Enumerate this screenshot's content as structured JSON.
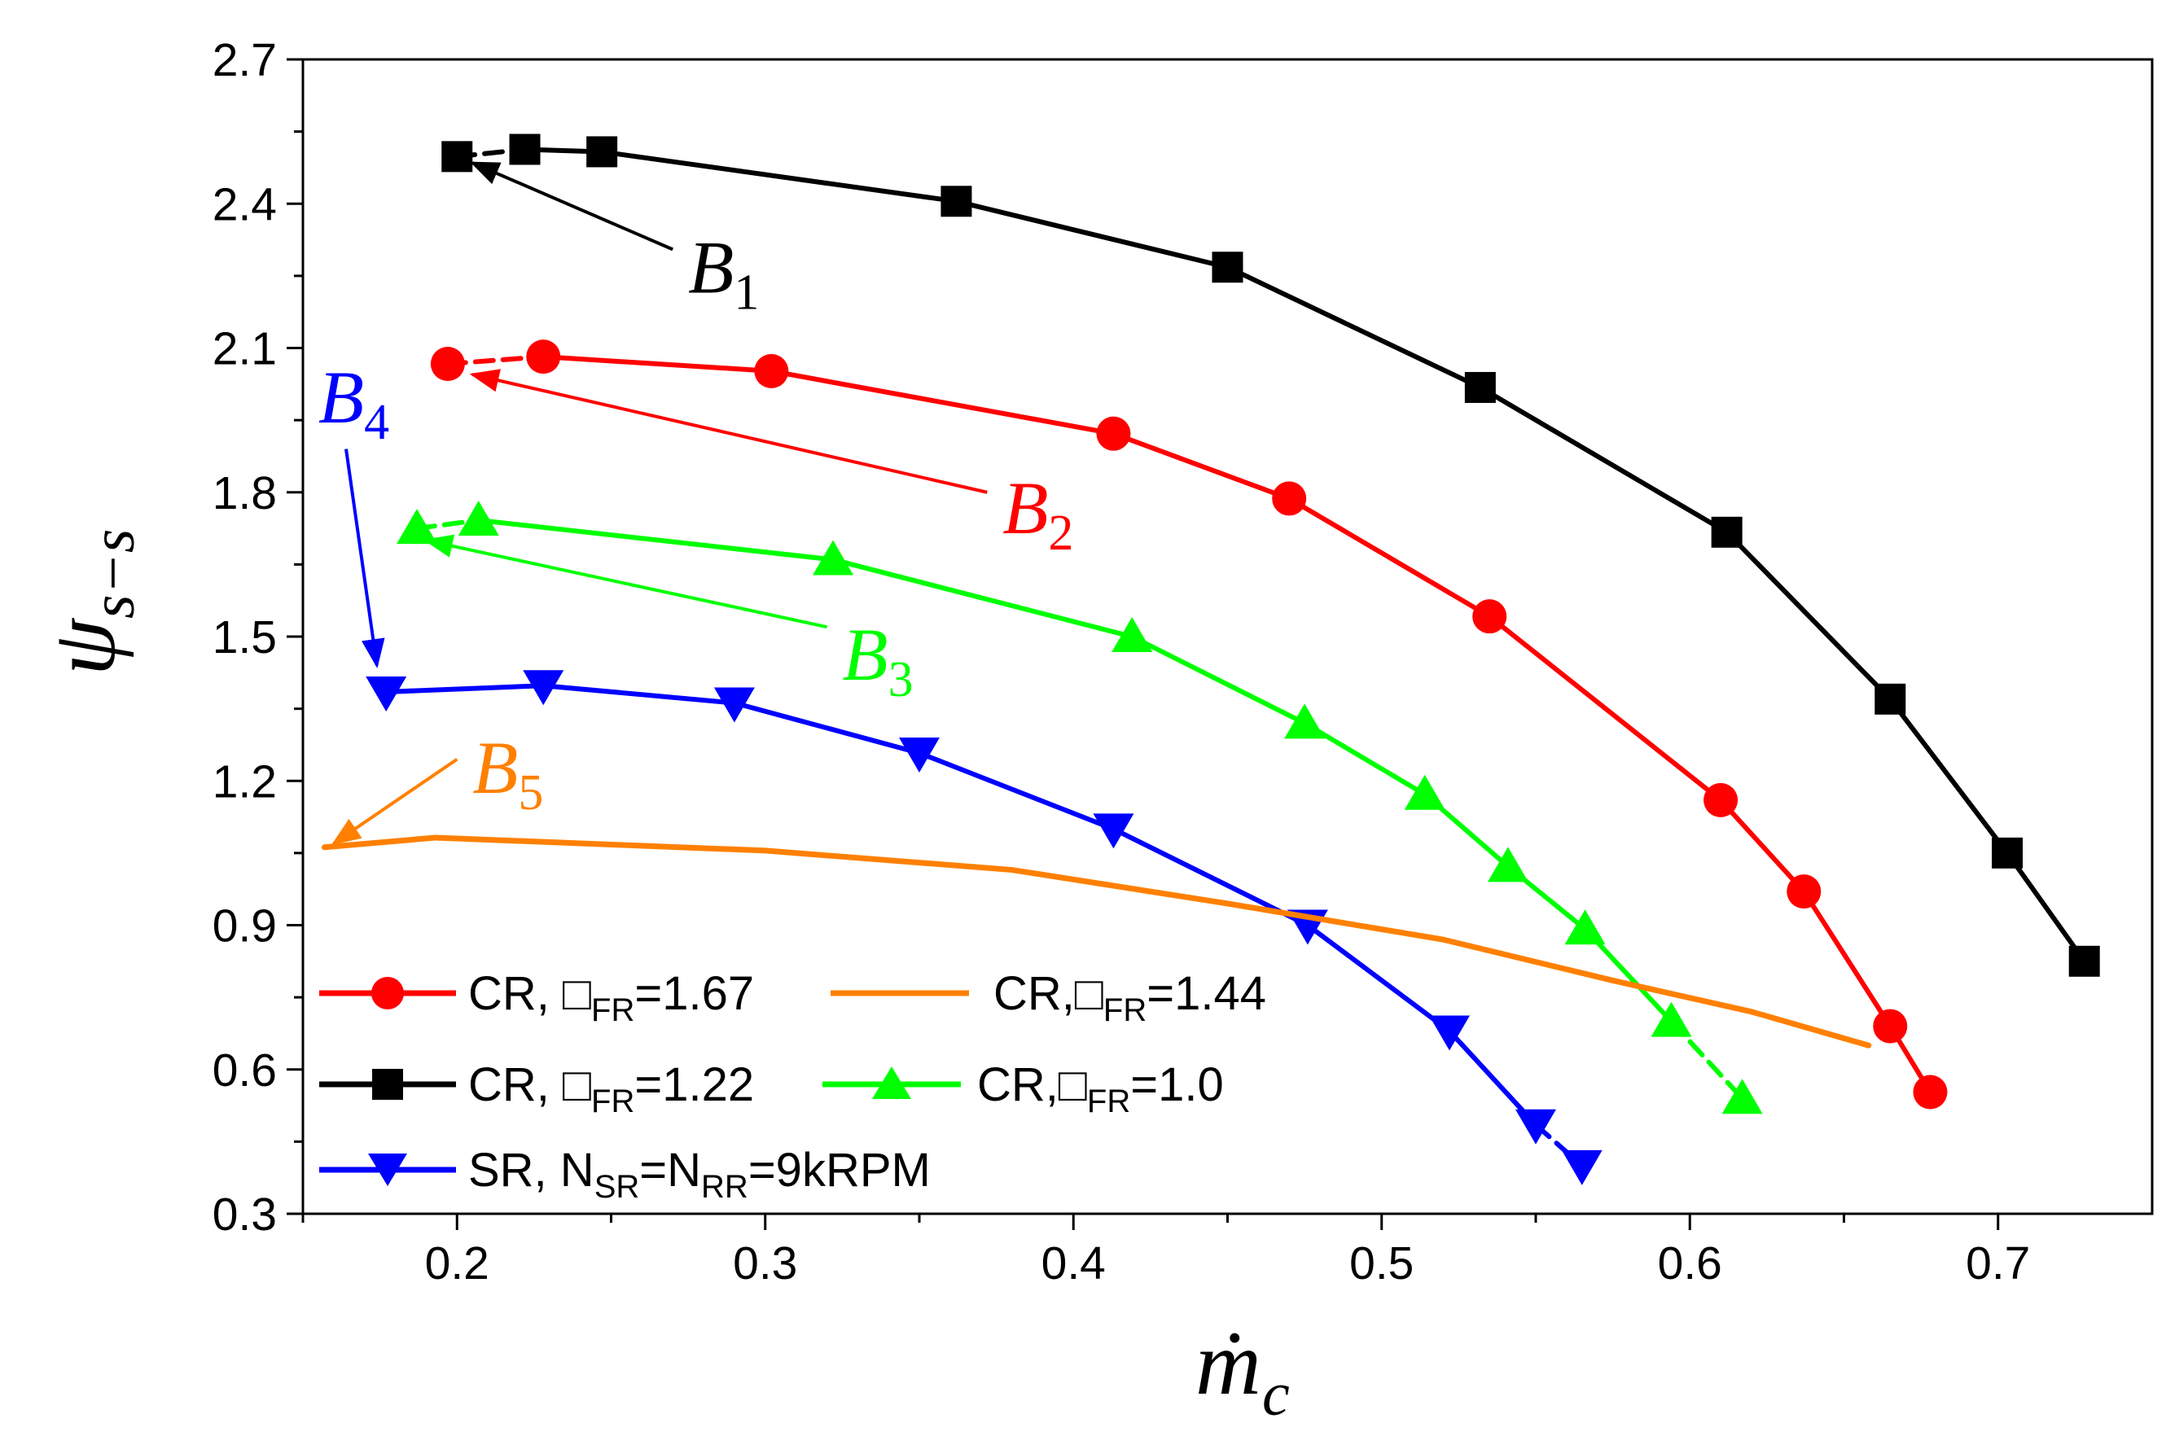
{
  "chart_data": {
    "type": "line",
    "xlabel": "ṁ",
    "xlabel_sub": "c",
    "ylabel": "ψ",
    "ylabel_sub": "s−s",
    "xlim": [
      0.15,
      0.75
    ],
    "ylim": [
      0.3,
      2.7
    ],
    "xticks": [
      0.2,
      0.3,
      0.4,
      0.5,
      0.6,
      0.7
    ],
    "xtick_labels": [
      "0.2",
      "0.3",
      "0.4",
      "0.5",
      "0.6",
      "0.7"
    ],
    "yticks": [
      0.3,
      0.6,
      0.9,
      1.2,
      1.5,
      1.8,
      2.1,
      2.4,
      2.7
    ],
    "ytick_labels": [
      "0.3",
      "0.6",
      "0.9",
      "1.2",
      "1.5",
      "1.8",
      "2.1",
      "2.4",
      "2.7"
    ],
    "series": [
      {
        "id": "cr167",
        "name": "CR, □FR=1.67",
        "legend_main": "CR, □",
        "legend_sub": "FR",
        "legend_tail": "=1.67",
        "color": "#ff0000",
        "marker": "circle",
        "dashed_first": true,
        "dashed_last": false,
        "x": [
          0.197,
          0.228,
          0.302,
          0.413,
          0.47,
          0.535,
          0.61,
          0.637,
          0.665,
          0.678
        ],
        "y": [
          2.067,
          2.082,
          2.052,
          1.922,
          1.787,
          1.542,
          1.16,
          0.97,
          0.69,
          0.553
        ]
      },
      {
        "id": "cr122",
        "name": "CR, □FR=1.22",
        "legend_main": "CR, □",
        "legend_sub": "FR",
        "legend_tail": "=1.22",
        "color": "#000000",
        "marker": "square",
        "dashed_first": true,
        "dashed_last": false,
        "x": [
          0.2,
          0.222,
          0.247,
          0.362,
          0.45,
          0.532,
          0.612,
          0.665,
          0.703,
          0.728
        ],
        "y": [
          2.498,
          2.513,
          2.508,
          2.405,
          2.268,
          2.018,
          1.717,
          1.37,
          1.05,
          0.825
        ]
      },
      {
        "id": "cr100",
        "name": "CR,□FR=1.0",
        "legend_main": "CR,□",
        "legend_sub": "FR",
        "legend_tail": "=1.0",
        "color": "#00ff00",
        "marker": "triangle-up",
        "dashed_first": true,
        "dashed_last": true,
        "x": [
          0.187,
          0.207,
          0.322,
          0.419,
          0.475,
          0.514,
          0.541,
          0.566,
          0.594,
          0.617
        ],
        "y": [
          1.725,
          1.742,
          1.66,
          1.5,
          1.32,
          1.172,
          1.022,
          0.892,
          0.7,
          0.54
        ]
      },
      {
        "id": "sr",
        "name": "SR, NSR=NRR=9kRPM",
        "legend_main": "SR, N",
        "legend_sub": "SR",
        "legend_mid": "=N",
        "legend_sub2": "RR",
        "legend_tail": "=9kRPM",
        "color": "#0000ff",
        "marker": "triangle-down",
        "dashed_first": false,
        "dashed_last": true,
        "x": [
          0.177,
          0.228,
          0.29,
          0.35,
          0.413,
          0.476,
          0.522,
          0.55,
          0.565
        ],
        "y": [
          1.385,
          1.398,
          1.362,
          1.258,
          1.1,
          0.9,
          0.68,
          0.485,
          0.4
        ]
      },
      {
        "id": "cr144",
        "name": "CR,□FR=1.44",
        "legend_main": "CR,□",
        "legend_sub": "FR",
        "legend_tail": "=1.44",
        "color": "#ff8000",
        "marker": "none",
        "dashed_first": false,
        "dashed_last": false,
        "x": [
          0.157,
          0.193,
          0.3,
          0.38,
          0.45,
          0.52,
          0.575,
          0.62,
          0.658
        ],
        "y": [
          1.062,
          1.082,
          1.055,
          1.015,
          0.945,
          0.87,
          0.785,
          0.72,
          0.65
        ]
      }
    ],
    "annotations": [
      {
        "id": "b1",
        "label": "B",
        "sub": "1",
        "color": "#000000",
        "arrow_from": [
          0.27,
          2.305
        ],
        "arrow_to": [
          0.205,
          2.485
        ],
        "text_at": [
          0.275,
          2.215
        ]
      },
      {
        "id": "b2",
        "label": "B",
        "sub": "2",
        "color": "#ff0000",
        "arrow_from": [
          0.372,
          1.8
        ],
        "arrow_to": [
          0.205,
          2.045
        ],
        "text_at": [
          0.377,
          1.715
        ]
      },
      {
        "id": "b3",
        "label": "B",
        "sub": "3",
        "color": "#00ff00",
        "arrow_from": [
          0.32,
          1.52
        ],
        "arrow_to": [
          0.19,
          1.7
        ],
        "text_at": [
          0.325,
          1.41
        ]
      },
      {
        "id": "b4",
        "label": "B",
        "sub": "4",
        "color": "#0000ff",
        "arrow_from": [
          0.164,
          1.89
        ],
        "arrow_to": [
          0.174,
          1.44
        ],
        "text_at": [
          0.155,
          1.945
        ]
      },
      {
        "id": "b5",
        "label": "B",
        "sub": "5",
        "color": "#ff8000",
        "arrow_from": [
          0.2,
          1.245
        ],
        "arrow_to": [
          0.16,
          1.07
        ],
        "text_at": [
          0.205,
          1.175
        ]
      }
    ]
  }
}
